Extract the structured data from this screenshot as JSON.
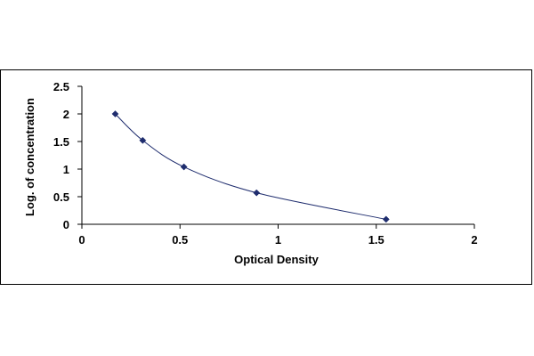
{
  "chart_data": {
    "type": "scatter",
    "title": "",
    "xlabel": "Optical Density",
    "ylabel": "Log. of concentration",
    "xlim": [
      0,
      2
    ],
    "ylim": [
      0,
      2.5
    ],
    "x_ticks": [
      "0",
      "0.5",
      "1",
      "1.5",
      "2"
    ],
    "y_ticks": [
      "0",
      "0.5",
      "1",
      "1.5",
      "2",
      "2.5"
    ],
    "grid": false,
    "legend": "none",
    "series": [
      {
        "x": [
          0.17,
          0.31,
          0.52,
          0.89,
          1.55
        ],
        "y": [
          2.0,
          1.52,
          1.04,
          0.57,
          0.09
        ],
        "color": "#1f2d6e",
        "marker": "diamond",
        "trendline": "smooth",
        "trendline_color": "#1f2d6e"
      }
    ]
  }
}
